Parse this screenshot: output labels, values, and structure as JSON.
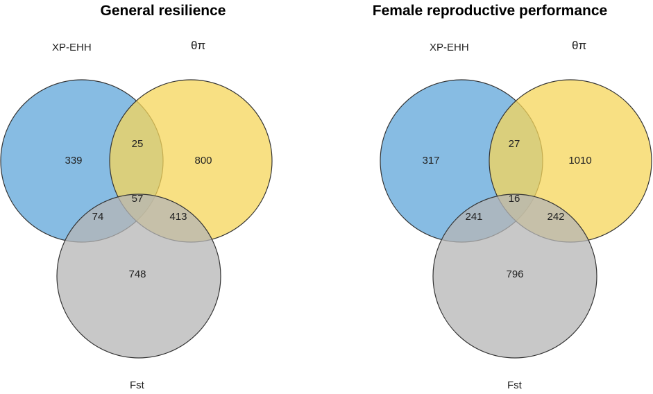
{
  "colors": {
    "xpehh": "#5fa5d9",
    "theta": "#f6d65a",
    "fst": "#b5b5b5",
    "stroke": "#333333",
    "text": "#222222"
  },
  "diagrams": [
    {
      "title": "General resilience",
      "labels": {
        "a": "XP-EHH",
        "b": "θπ",
        "c": "Fst"
      },
      "counts": {
        "a_only": "339",
        "b_only": "800",
        "c_only": "748",
        "ab": "25",
        "ac": "74",
        "bc": "413",
        "abc": "57"
      }
    },
    {
      "title": "Female reproductive performance",
      "labels": {
        "a": "XP-EHH",
        "b": "θπ",
        "c": "Fst"
      },
      "counts": {
        "a_only": "317",
        "b_only": "1010",
        "c_only": "796",
        "ab": "27",
        "ac": "241",
        "bc": "242",
        "abc": "16"
      }
    }
  ]
}
